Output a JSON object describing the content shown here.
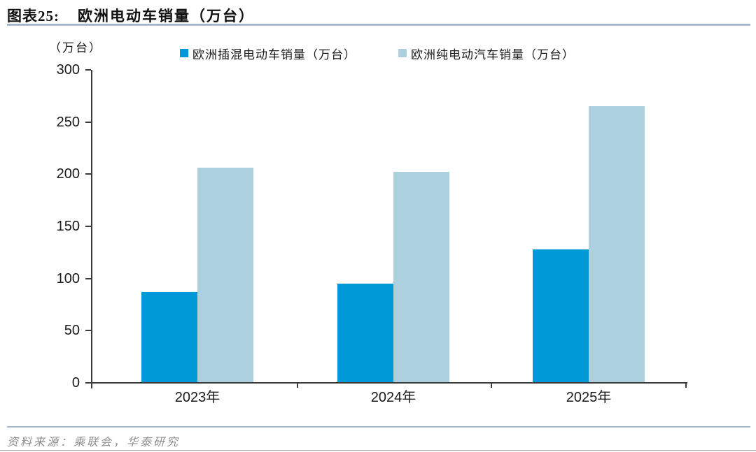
{
  "title": {
    "index": "图表25:",
    "text": "欧洲电动车销量（万台）"
  },
  "y_axis_unit": "（万台）",
  "footer": {
    "source": "资料来源：乘联会，华泰研究"
  },
  "colors": {
    "phev_bar": "#0099D8",
    "bev_bar": "#ADD0DF",
    "title_rule": "#9FAEC5",
    "footer_rule": "#A9B9CE",
    "axis": "#3A3A3A",
    "source_text": "#8C8C8C"
  },
  "chart_data": {
    "type": "bar",
    "title": "欧洲电动车销量（万台）",
    "categories": [
      "2023年",
      "2024年",
      "2025年"
    ],
    "series": [
      {
        "key": "phev",
        "name": "欧洲插混电动车销量（万台）",
        "color": "#0099D8",
        "values": [
          87,
          95,
          128
        ]
      },
      {
        "key": "bev",
        "name": "欧洲纯电动汽车销量（万台）",
        "color": "#ADD0DF",
        "values": [
          206,
          202,
          265
        ]
      }
    ],
    "xlabel": "",
    "ylabel": "（万台）",
    "ylim": [
      0,
      300
    ],
    "ytick_step": 50,
    "grid": false,
    "legend_position": "top"
  }
}
